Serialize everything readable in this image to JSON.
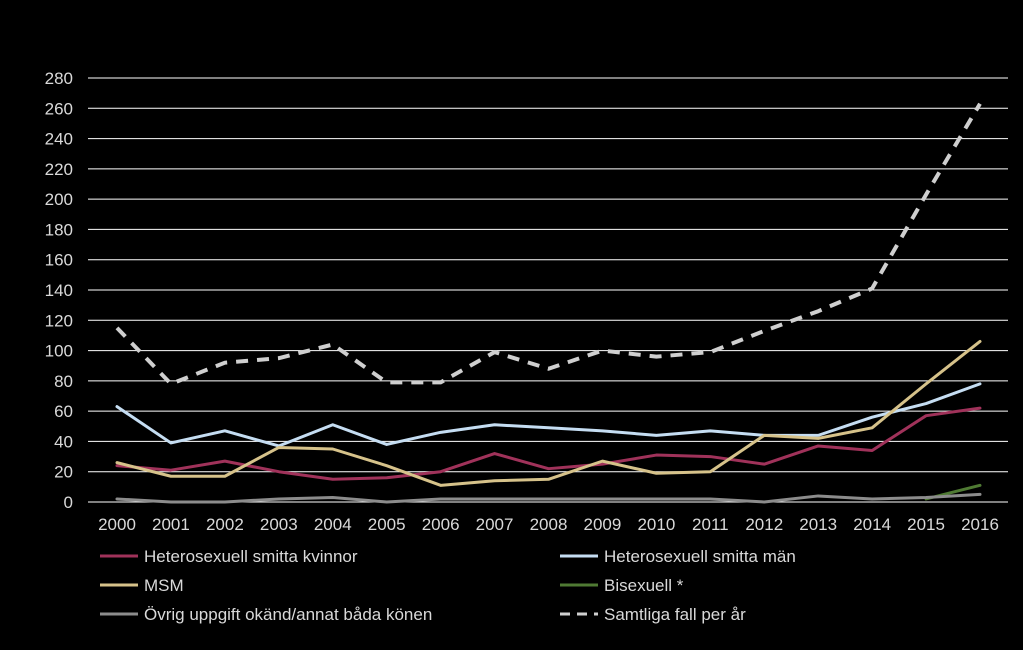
{
  "chart_data": {
    "type": "line",
    "title": "",
    "xlabel": "",
    "ylabel": "",
    "ylim": [
      0,
      280
    ],
    "yticks": [
      0,
      20,
      40,
      60,
      80,
      100,
      120,
      140,
      160,
      180,
      200,
      220,
      240,
      260,
      280
    ],
    "categories": [
      "2000",
      "2001",
      "2002",
      "2003",
      "2004",
      "2005",
      "2006",
      "2007",
      "2008",
      "2009",
      "2010",
      "2011",
      "2012",
      "2013",
      "2014",
      "2015",
      "2016"
    ],
    "grid": true,
    "legend_position": "bottom",
    "series": [
      {
        "name": "Heterosexuell smitta kvinnor",
        "color": "#a0325a",
        "dashed": false,
        "values": [
          24,
          21,
          27,
          20,
          15,
          16,
          20,
          32,
          22,
          25,
          31,
          30,
          25,
          37,
          34,
          57,
          62
        ]
      },
      {
        "name": "Heterosexuell smitta män",
        "color": "#c5ddf2",
        "dashed": false,
        "values": [
          63,
          39,
          47,
          37,
          51,
          38,
          46,
          51,
          49,
          47,
          44,
          47,
          44,
          44,
          56,
          65,
          78
        ]
      },
      {
        "name": "MSM",
        "color": "#d6c28a",
        "dashed": false,
        "values": [
          26,
          17,
          17,
          36,
          35,
          24,
          11,
          14,
          15,
          27,
          19,
          20,
          44,
          42,
          49,
          78,
          106
        ]
      },
      {
        "name": "Bisexuell *",
        "color": "#4f7a33",
        "dashed": false,
        "start_index": 15,
        "values": [
          null,
          null,
          null,
          null,
          null,
          null,
          null,
          null,
          null,
          null,
          null,
          null,
          null,
          null,
          null,
          2,
          11
        ]
      },
      {
        "name": "Övrig uppgift okänd/annat båda könen",
        "color": "#8c8c8c",
        "dashed": false,
        "values": [
          2,
          0,
          0,
          2,
          3,
          0,
          2,
          2,
          2,
          2,
          2,
          2,
          0,
          4,
          2,
          3,
          5
        ]
      },
      {
        "name": "Samtliga fall per år",
        "color": "#cfcfcf",
        "dashed": true,
        "values": [
          115,
          78,
          92,
          95,
          104,
          79,
          79,
          99,
          88,
          100,
          96,
          99,
          113,
          126,
          141,
          203,
          263
        ]
      }
    ]
  }
}
